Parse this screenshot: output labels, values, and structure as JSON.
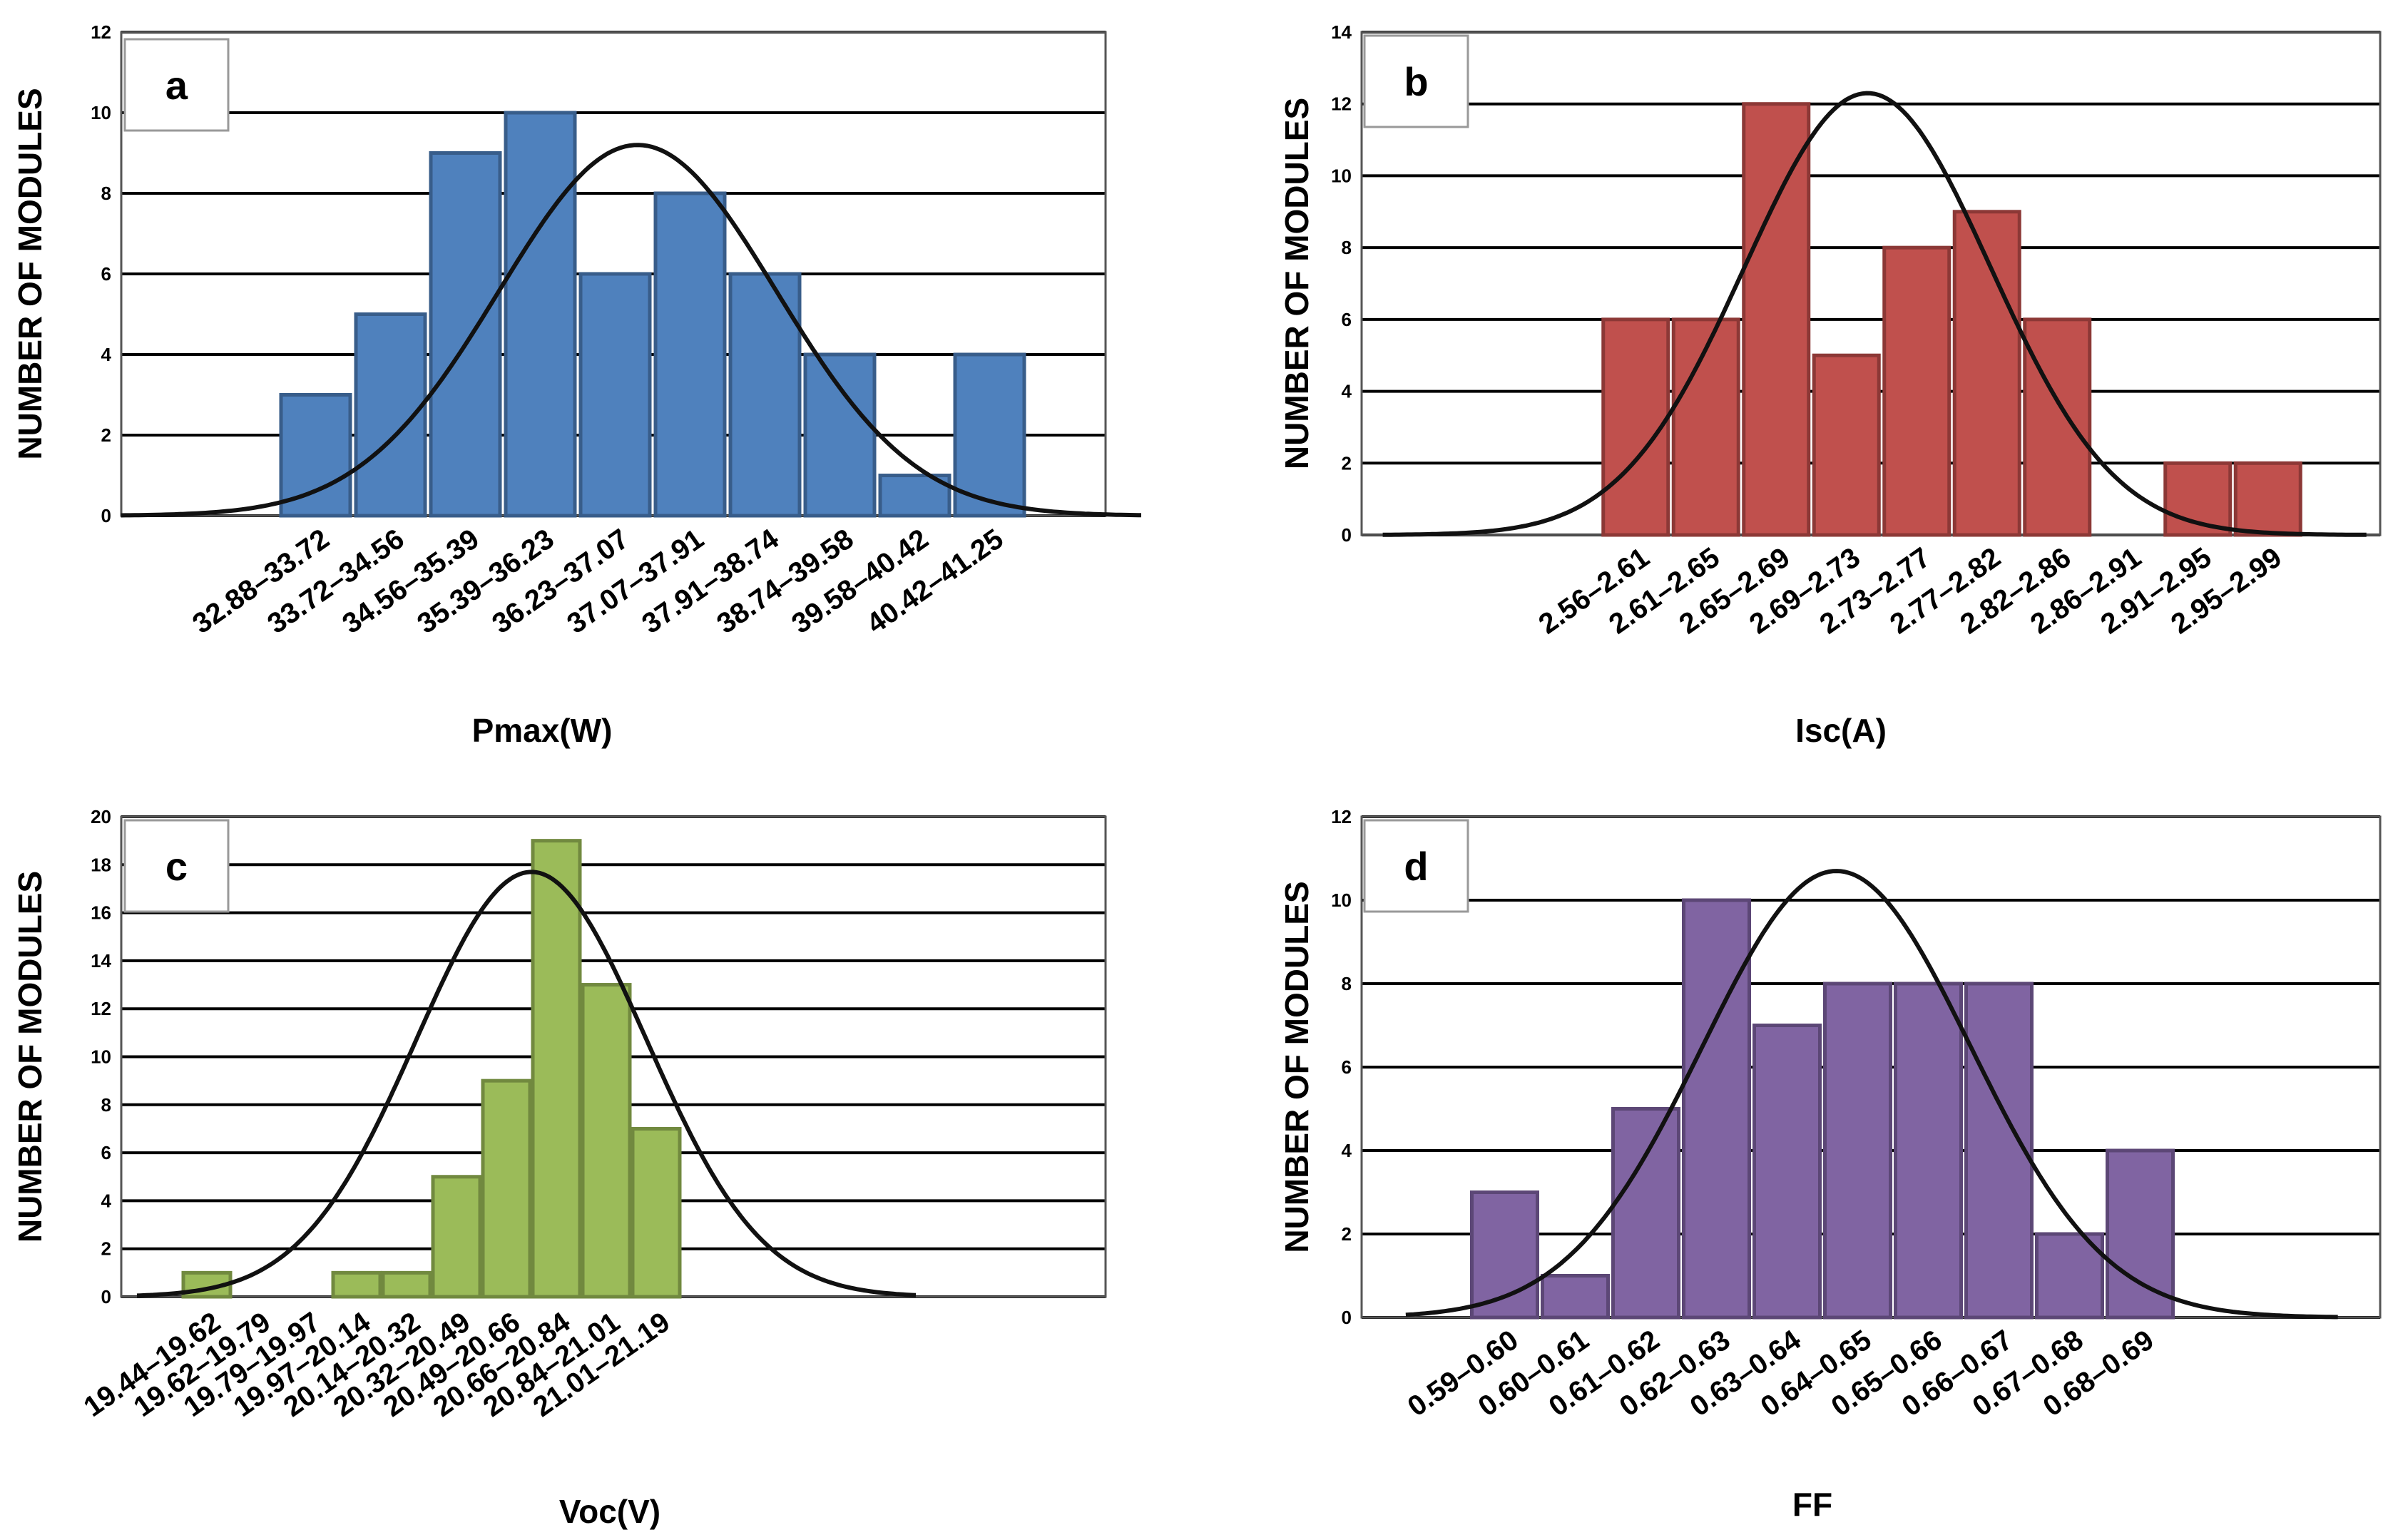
{
  "chart_data": [
    {
      "id": "a",
      "type": "bar",
      "panel_label": "a",
      "xlabel": "Pmax(W)",
      "ylabel": "NUMBER OF MODULES",
      "ylim": [
        0,
        12
      ],
      "yticks": [
        0,
        2,
        4,
        6,
        8,
        10,
        12
      ],
      "grid": true,
      "color": "#4f81bd",
      "edge_color": "#385d8a",
      "categories": [
        "32.88–33.72",
        "33.72–34.56",
        "34.56–35.39",
        "35.39–36.23",
        "36.23–37.07",
        "37.07–37.91",
        "37.91–38.74",
        "38.74–39.58",
        "39.58–40.42",
        "40.42–41.25"
      ],
      "values": [
        3,
        5,
        9,
        10,
        6,
        8,
        6,
        4,
        1,
        4
      ],
      "curve": {
        "type": "normal",
        "peak": 9.2,
        "center_index": 4.8,
        "sd_bins": 1.85,
        "x_range_bins": [
          -2.1,
          12.2
        ]
      }
    },
    {
      "id": "b",
      "type": "bar",
      "panel_label": "b",
      "xlabel": "Isc(A)",
      "ylabel": "NUMBER OF MODULES",
      "ylim": [
        0,
        14
      ],
      "yticks": [
        0,
        2,
        4,
        6,
        8,
        10,
        12,
        14
      ],
      "grid": true,
      "color": "#c0504d",
      "edge_color": "#8c3836",
      "categories": [
        "2.56–2.61",
        "2.61–2.65",
        "2.65–2.69",
        "2.69–2.73",
        "2.73–2.77",
        "2.77–2.82",
        "2.82–2.86",
        "2.86–2.91",
        "2.91–2.95",
        "2.95–2.99"
      ],
      "values": [
        6,
        6,
        12,
        5,
        8,
        9,
        6,
        0,
        2,
        2
      ],
      "curve": {
        "type": "normal",
        "peak": 12.3,
        "center_index": 3.8,
        "sd_bins": 1.75,
        "x_range_bins": [
          -3.1,
          10.9
        ]
      }
    },
    {
      "id": "c",
      "type": "bar",
      "panel_label": "c",
      "xlabel": "Voc(V)",
      "ylabel": "NUMBER OF MODULES",
      "ylim": [
        0,
        20
      ],
      "yticks": [
        0,
        2,
        4,
        6,
        8,
        10,
        12,
        14,
        16,
        18,
        20
      ],
      "grid": true,
      "color": "#9bbb59",
      "edge_color": "#71893f",
      "categories": [
        "19.44–19.62",
        "19.62–19.79",
        "19.79–19.97",
        "19.97–20.14",
        "20.14–20.32",
        "20.32–20.49",
        "20.49–20.66",
        "20.66–20.84",
        "20.84–21.01",
        "21.01–21.19"
      ],
      "values": [
        1,
        0,
        0,
        1,
        1,
        5,
        9,
        19,
        13,
        7
      ],
      "curve": {
        "type": "normal",
        "peak": 17.7,
        "center_index": 7.0,
        "sd_bins": 2.3,
        "x_range_bins": [
          -0.9,
          14.7
        ]
      }
    },
    {
      "id": "d",
      "type": "bar",
      "panel_label": "d",
      "xlabel": "FF",
      "ylabel": "NUMBER OF MODULES",
      "ylim": [
        0,
        12
      ],
      "yticks": [
        0,
        2,
        4,
        6,
        8,
        10,
        12
      ],
      "grid": true,
      "color": "#8064a2",
      "edge_color": "#5c4776",
      "categories": [
        "0.59–0.60",
        "0.60–0.61",
        "0.61–0.62",
        "0.62–0.63",
        "0.63–0.64",
        "0.64–0.65",
        "0.65–0.66",
        "0.66–0.67",
        "0.67–0.68",
        "0.68–0.69"
      ],
      "values": [
        3,
        1,
        5,
        10,
        7,
        8,
        8,
        8,
        2,
        4
      ],
      "curve": {
        "type": "normal",
        "peak": 10.7,
        "center_index": 5.2,
        "sd_bins": 1.9,
        "x_range_bins": [
          -0.9,
          12.3
        ]
      }
    }
  ]
}
